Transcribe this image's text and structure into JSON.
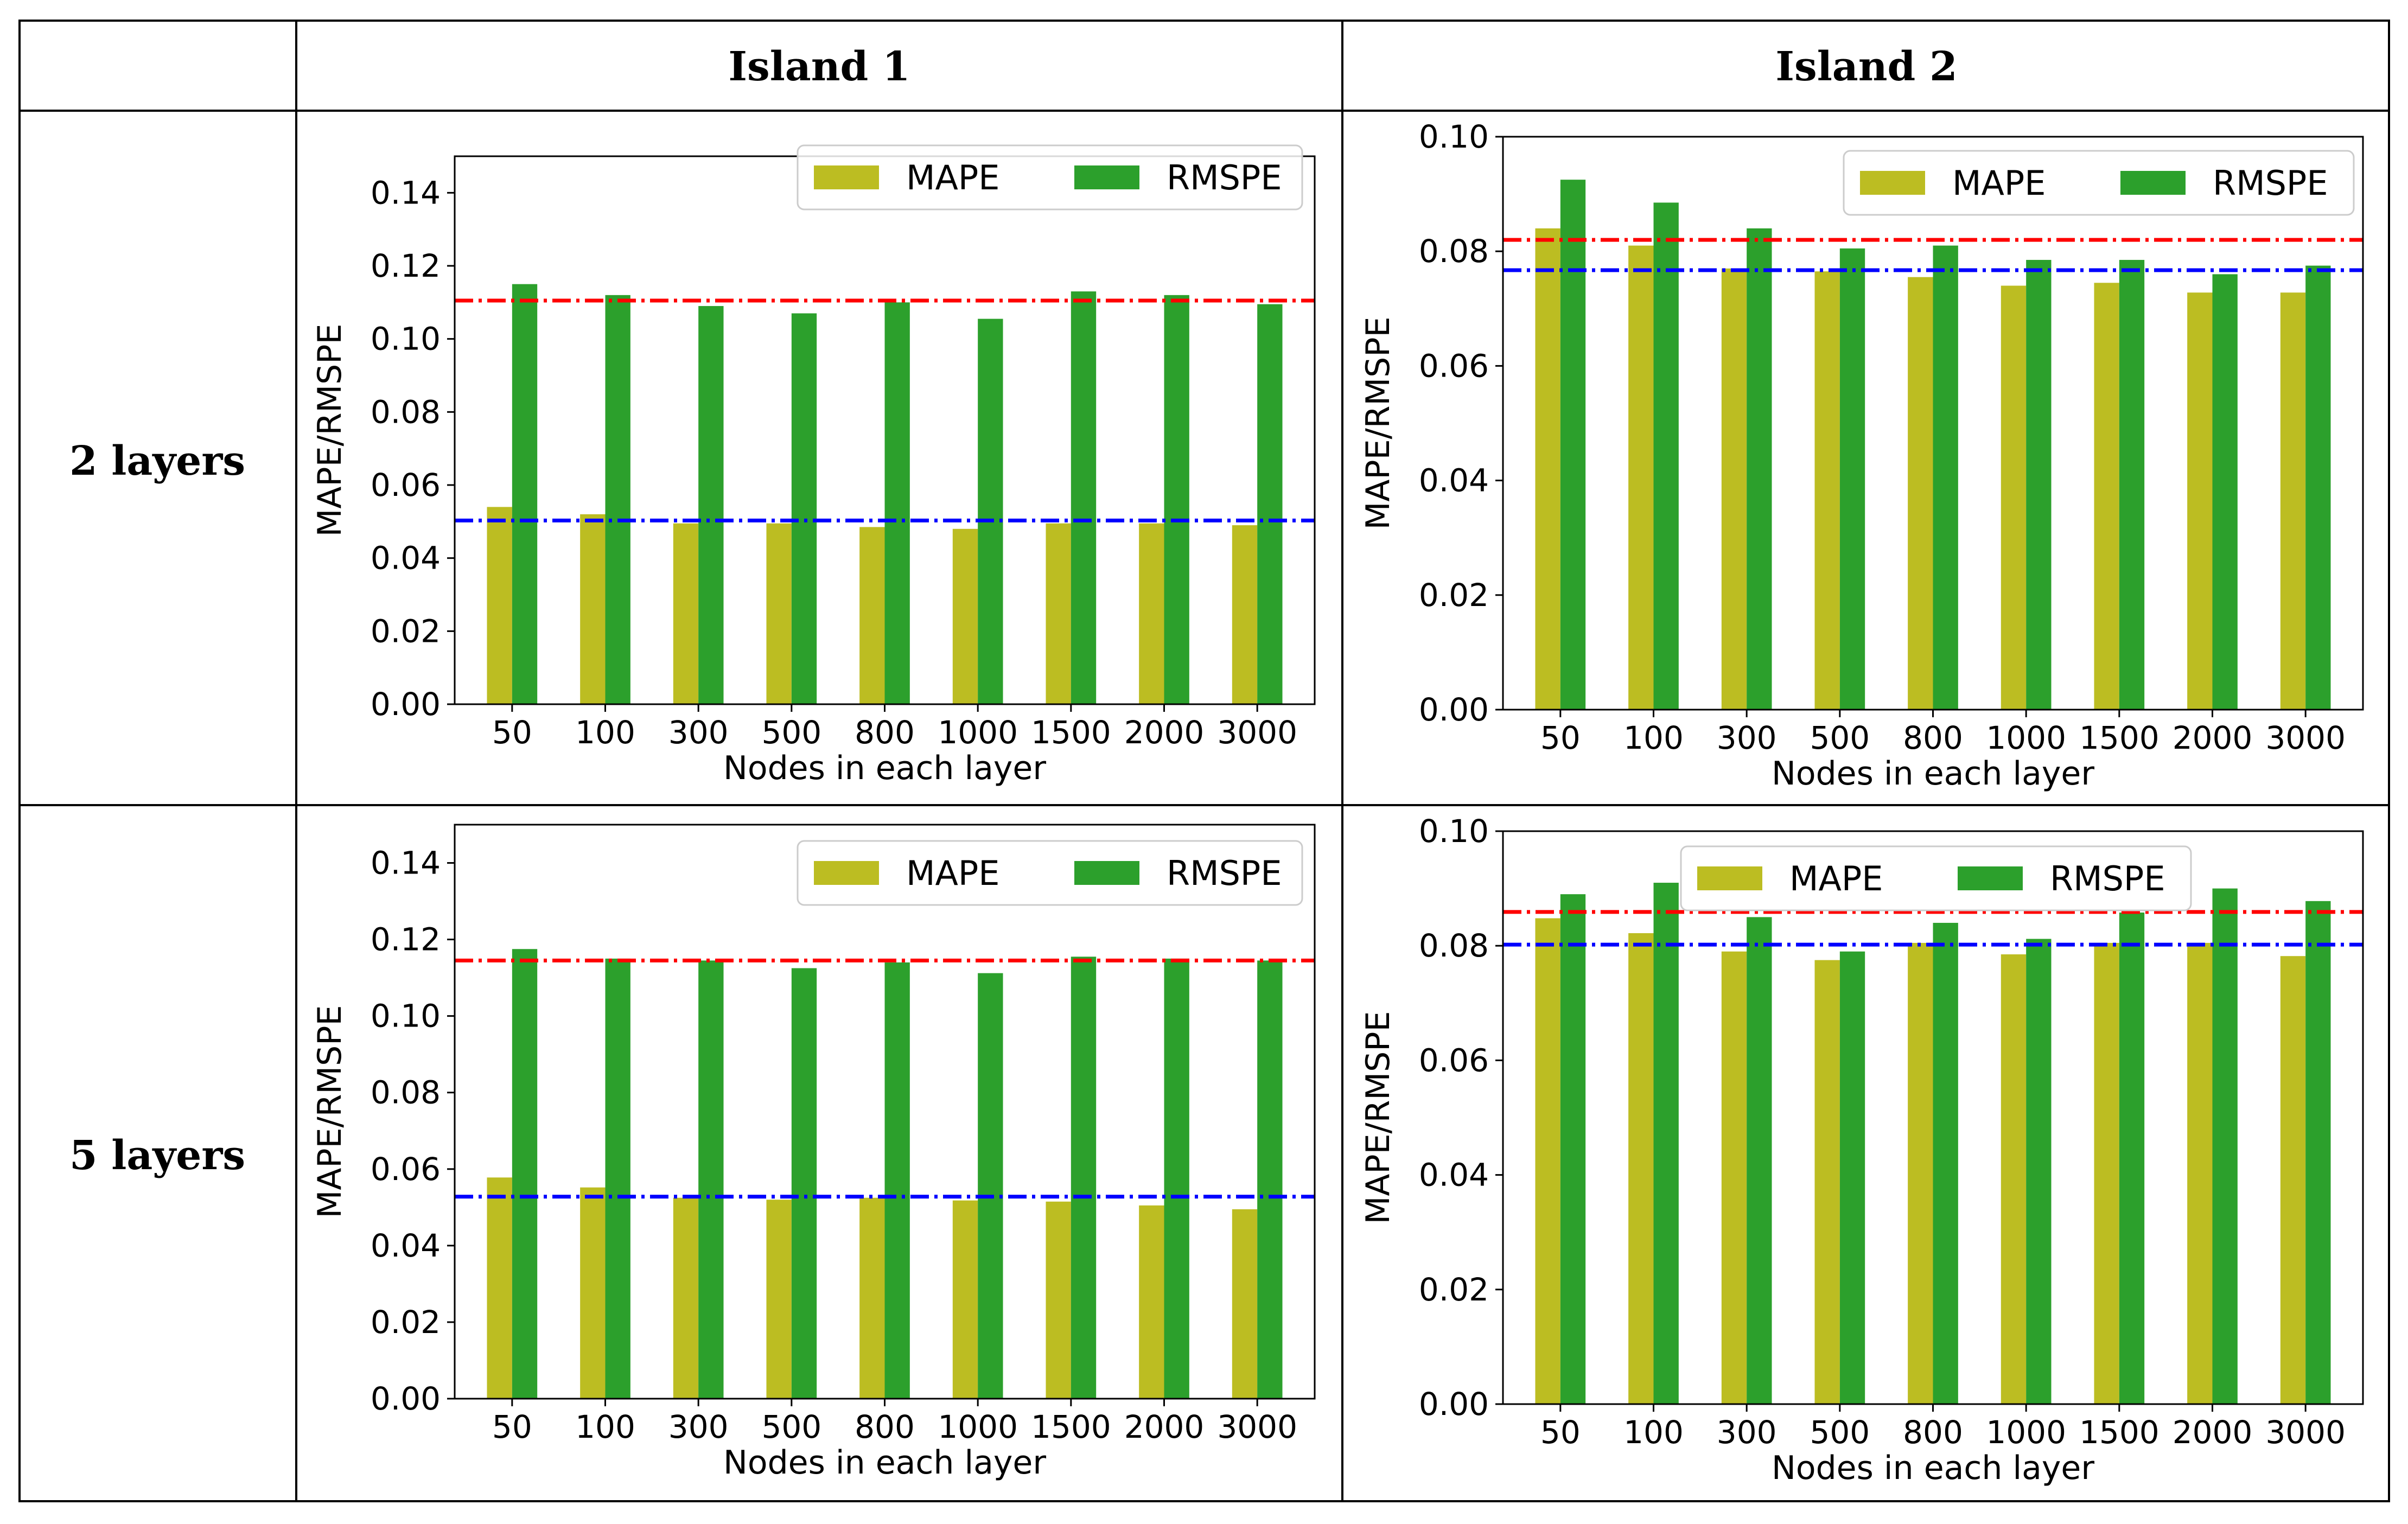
{
  "table": {
    "columns": [
      "",
      "Island 1",
      "Island 2"
    ],
    "rows": [
      "2 layers",
      "5 layers"
    ]
  },
  "legend": [
    "MAPE",
    "RMSPE"
  ],
  "colors": {
    "mape": "#bcbd22",
    "rmspe": "#2ca02c",
    "ref_red": "#ff0000",
    "ref_blue": "#0000ff",
    "grid": "#000000"
  },
  "chart_data": [
    {
      "id": "island1-2layers",
      "type": "bar",
      "title": "",
      "xlabel": "Nodes in each layer",
      "ylabel": "MAPE/RMSPE",
      "categories": [
        "50",
        "100",
        "300",
        "500",
        "800",
        "1000",
        "1500",
        "2000",
        "3000"
      ],
      "ylim": [
        0,
        0.15
      ],
      "yticks": [
        "0.00",
        "0.02",
        "0.04",
        "0.06",
        "0.08",
        "0.10",
        "0.12",
        "0.14"
      ],
      "ytick_values": [
        0,
        0.02,
        0.04,
        0.06,
        0.08,
        0.1,
        0.12,
        0.14
      ],
      "series": [
        {
          "name": "MAPE",
          "values": [
            0.054,
            0.052,
            0.0495,
            0.0495,
            0.0485,
            0.048,
            0.0495,
            0.0495,
            0.049
          ]
        },
        {
          "name": "RMSPE",
          "values": [
            0.115,
            0.112,
            0.109,
            0.107,
            0.11,
            0.1055,
            0.113,
            0.112,
            0.1095
          ]
        }
      ],
      "ref_lines": {
        "red": 0.1105,
        "blue": 0.0503
      },
      "legend_position": "top-right"
    },
    {
      "id": "island2-2layers",
      "type": "bar",
      "title": "",
      "xlabel": "Nodes in each layer",
      "ylabel": "MAPE/RMSPE",
      "categories": [
        "50",
        "100",
        "300",
        "500",
        "800",
        "1000",
        "1500",
        "2000",
        "3000"
      ],
      "ylim": [
        0,
        0.1
      ],
      "yticks": [
        "0.00",
        "0.02",
        "0.04",
        "0.06",
        "0.08",
        "0.10"
      ],
      "ytick_values": [
        0,
        0.02,
        0.04,
        0.06,
        0.08,
        0.1
      ],
      "series": [
        {
          "name": "MAPE",
          "values": [
            0.084,
            0.081,
            0.077,
            0.0765,
            0.0755,
            0.074,
            0.0745,
            0.0728,
            0.0728
          ]
        },
        {
          "name": "RMSPE",
          "values": [
            0.0925,
            0.0885,
            0.084,
            0.0805,
            0.081,
            0.0785,
            0.0785,
            0.076,
            0.0775
          ]
        }
      ],
      "ref_lines": {
        "red": 0.082,
        "blue": 0.0767
      },
      "legend_position": "top-right"
    },
    {
      "id": "island1-5layers",
      "type": "bar",
      "title": "",
      "xlabel": "Nodes in each layer",
      "ylabel": "MAPE/RMSPE",
      "categories": [
        "50",
        "100",
        "300",
        "500",
        "800",
        "1000",
        "1500",
        "2000",
        "3000"
      ],
      "ylim": [
        0,
        0.15
      ],
      "yticks": [
        "0.00",
        "0.02",
        "0.04",
        "0.06",
        "0.08",
        "0.10",
        "0.12",
        "0.14"
      ],
      "ytick_values": [
        0,
        0.02,
        0.04,
        0.06,
        0.08,
        0.1,
        0.12,
        0.14
      ],
      "series": [
        {
          "name": "MAPE",
          "values": [
            0.0578,
            0.0552,
            0.0525,
            0.052,
            0.0525,
            0.0518,
            0.0515,
            0.0505,
            0.0495
          ]
        },
        {
          "name": "RMSPE",
          "values": [
            0.1175,
            0.115,
            0.1145,
            0.1125,
            0.114,
            0.1112,
            0.1155,
            0.115,
            0.1145
          ]
        }
      ],
      "ref_lines": {
        "red": 0.1145,
        "blue": 0.0528
      },
      "legend_position": "top-right"
    },
    {
      "id": "island2-5layers",
      "type": "bar",
      "title": "",
      "xlabel": "Nodes in each layer",
      "ylabel": "MAPE/RMSPE",
      "categories": [
        "50",
        "100",
        "300",
        "500",
        "800",
        "1000",
        "1500",
        "2000",
        "3000"
      ],
      "ylim": [
        0,
        0.1
      ],
      "yticks": [
        "0.00",
        "0.02",
        "0.04",
        "0.06",
        "0.08",
        "0.10"
      ],
      "ytick_values": [
        0,
        0.02,
        0.04,
        0.06,
        0.08,
        0.1
      ],
      "series": [
        {
          "name": "MAPE",
          "values": [
            0.0848,
            0.0822,
            0.079,
            0.0775,
            0.0805,
            0.0785,
            0.0805,
            0.0805,
            0.0782
          ]
        },
        {
          "name": "RMSPE",
          "values": [
            0.089,
            0.091,
            0.085,
            0.079,
            0.084,
            0.0812,
            0.0858,
            0.09,
            0.0878
          ]
        }
      ],
      "ref_lines": {
        "red": 0.0859,
        "blue": 0.0802
      },
      "legend_position": "top-center"
    }
  ]
}
